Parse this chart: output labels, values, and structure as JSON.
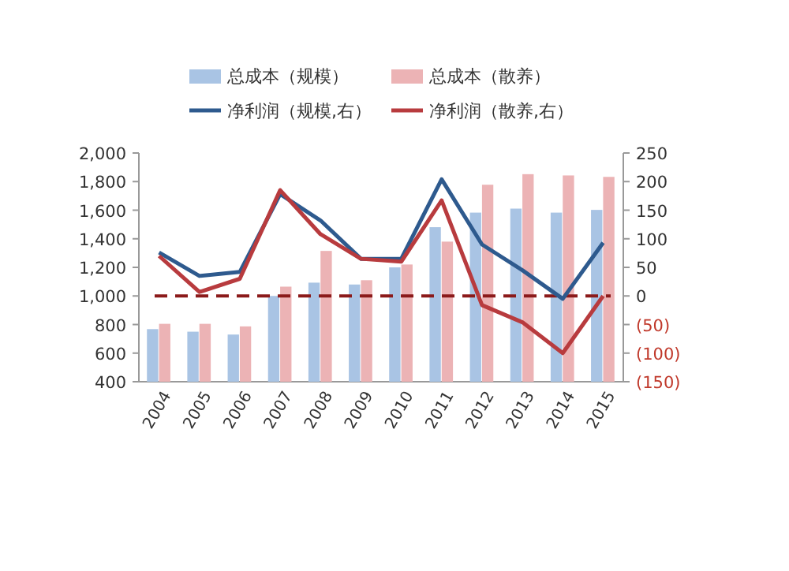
{
  "chart_data": {
    "type": "bar",
    "categories": [
      "2004",
      "2005",
      "2006",
      "2007",
      "2008",
      "2009",
      "2010",
      "2011",
      "2012",
      "2013",
      "2014",
      "2015"
    ],
    "series": [
      {
        "name": "总成本（规模）",
        "color": "#a9c4e4",
        "values": [
          768,
          750,
          730,
          1000,
          1093,
          1080,
          1200,
          1481,
          1583,
          1611,
          1583,
          1602
        ]
      },
      {
        "name": "总成本（散养）",
        "color": "#ecb3b5",
        "values": [
          805,
          805,
          787,
          1065,
          1315,
          1110,
          1220,
          1380,
          1778,
          1852,
          1843,
          1833
        ]
      },
      {
        "name": "净利润（规模,右）",
        "type": "line",
        "axis": "y2",
        "color": "#2e5a8e",
        "values": [
          76,
          35,
          42,
          178,
          132,
          65,
          65,
          204,
          90,
          45,
          -5,
          93
        ]
      },
      {
        "name": "净利润（散养,右）",
        "type": "line",
        "axis": "y2",
        "color": "#b83b3e",
        "values": [
          70,
          7,
          30,
          185,
          108,
          65,
          60,
          167,
          -16,
          -46,
          -100,
          0
        ]
      }
    ],
    "ylim": [
      400,
      2000
    ],
    "yticks": [
      {
        "value": 400,
        "label": "400"
      },
      {
        "value": 600,
        "label": "600"
      },
      {
        "value": 800,
        "label": "800"
      },
      {
        "value": 1000,
        "label": "1,000"
      },
      {
        "value": 1200,
        "label": "1,200"
      },
      {
        "value": 1400,
        "label": "1,400"
      },
      {
        "value": 1600,
        "label": "1,600"
      },
      {
        "value": 1800,
        "label": "1,800"
      },
      {
        "value": 2000,
        "label": "2,000"
      }
    ],
    "y2lim": [
      -150,
      250
    ],
    "y2ticks": [
      {
        "value": -150,
        "label": "(150)"
      },
      {
        "value": -100,
        "label": "(100)"
      },
      {
        "value": -50,
        "label": "(50)"
      },
      0,
      50,
      100,
      150,
      200,
      250
    ],
    "ref_lines": [
      {
        "axis": "y2",
        "value": 0,
        "color": "#8b1a1a",
        "line_style": "dashed"
      }
    ],
    "legend": "top",
    "grid": false
  }
}
